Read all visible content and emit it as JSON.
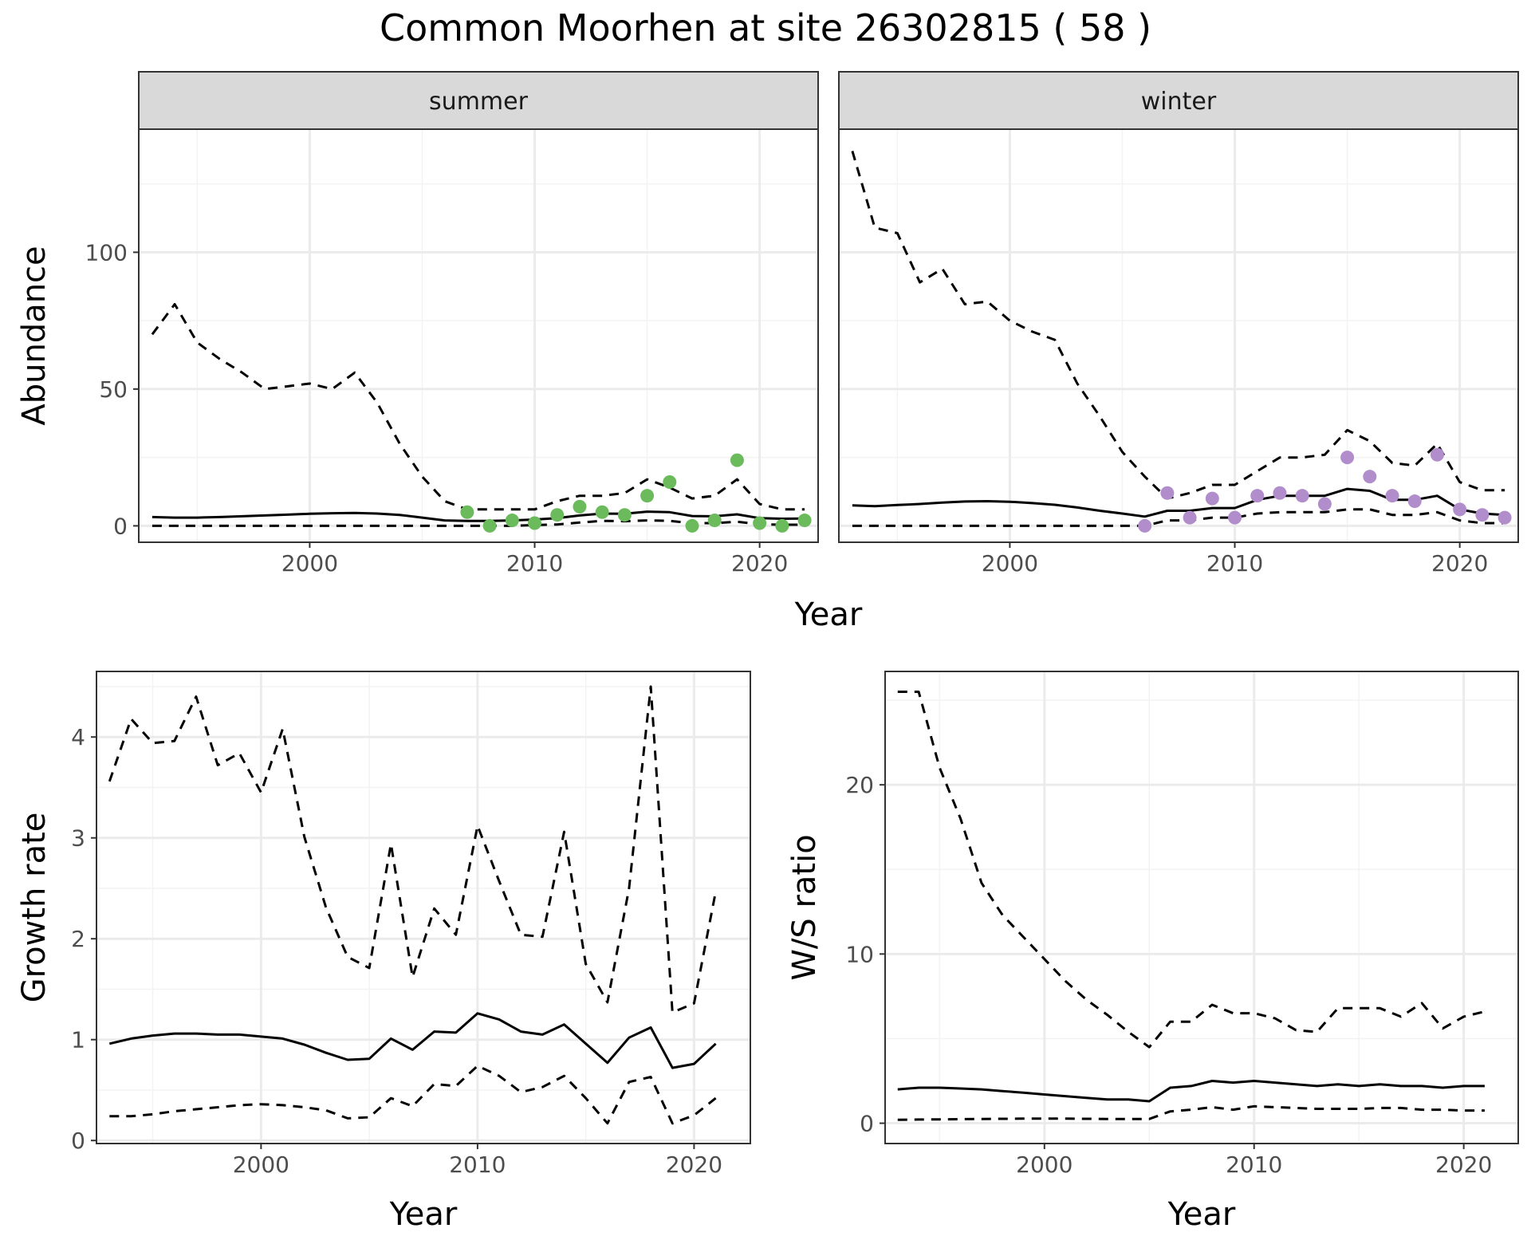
{
  "title": "Common Moorhen at site 26302815 ( 58 )",
  "chart_data": [
    {
      "id": "abundance",
      "type": "line",
      "ylabel": "Abundance",
      "xlabel": "Year",
      "xlim": [
        1992.4,
        2022.6
      ],
      "ylim": [
        -6,
        145
      ],
      "xticks": [
        2000,
        2010,
        2020
      ],
      "yticks": [
        0,
        50,
        100
      ],
      "panels": [
        {
          "strip": "summer",
          "point_color": "#6bbb5c",
          "years": [
            1993,
            1994,
            1995,
            1996,
            1997,
            1998,
            1999,
            2000,
            2001,
            2002,
            2003,
            2004,
            2005,
            2006,
            2007,
            2008,
            2009,
            2010,
            2011,
            2012,
            2013,
            2014,
            2015,
            2016,
            2017,
            2018,
            2019,
            2020,
            2021,
            2022
          ],
          "fit": [
            3.2,
            3.0,
            3.0,
            3.2,
            3.5,
            3.8,
            4.1,
            4.4,
            4.6,
            4.7,
            4.5,
            4.0,
            3.0,
            2.0,
            1.8,
            1.8,
            2.0,
            2.3,
            2.8,
            3.8,
            4.5,
            4.4,
            5.2,
            5.0,
            3.6,
            3.5,
            4.2,
            2.8,
            2.6,
            2.7
          ],
          "upper": [
            70,
            81,
            67,
            61,
            56,
            50,
            51,
            52,
            50,
            56,
            45,
            30,
            18,
            9,
            6,
            6,
            6,
            6,
            9,
            11,
            11,
            12,
            17,
            14,
            10,
            11,
            17,
            8,
            6,
            6
          ],
          "lower": [
            0,
            0,
            0,
            0,
            0,
            0,
            0,
            0,
            0,
            0,
            0,
            0,
            0,
            0,
            0,
            0,
            0,
            0.3,
            0.5,
            1.2,
            1.8,
            1.7,
            2.0,
            1.8,
            1.0,
            1.0,
            1.5,
            0.6,
            0.4,
            0.4
          ],
          "obs_years": [
            2007,
            2008,
            2009,
            2010,
            2011,
            2012,
            2013,
            2014,
            2015,
            2016,
            2017,
            2018,
            2019,
            2020,
            2021,
            2022
          ],
          "obs": [
            5,
            0,
            2,
            1,
            4,
            7,
            5,
            4,
            11,
            16,
            0,
            2,
            24,
            1,
            0,
            2
          ]
        },
        {
          "strip": "winter",
          "point_color": "#b18ecb",
          "years": [
            1993,
            1994,
            1995,
            1996,
            1997,
            1998,
            1999,
            2000,
            2001,
            2002,
            2003,
            2004,
            2005,
            2006,
            2007,
            2008,
            2009,
            2010,
            2011,
            2012,
            2013,
            2014,
            2015,
            2016,
            2017,
            2018,
            2019,
            2020,
            2021,
            2022
          ],
          "fit": [
            7.5,
            7.2,
            7.6,
            8.0,
            8.5,
            8.9,
            9.0,
            8.8,
            8.3,
            7.7,
            6.7,
            5.5,
            4.5,
            3.4,
            5.5,
            5.5,
            6.5,
            6.5,
            9.5,
            11,
            11,
            11,
            13.5,
            12.8,
            9.5,
            9.5,
            11,
            6,
            4.5,
            4
          ],
          "upper": [
            137,
            109,
            107,
            89,
            94,
            81,
            82,
            75,
            71,
            68,
            52,
            40,
            27,
            18,
            10,
            12,
            15,
            15,
            20,
            25,
            25,
            26,
            35,
            31,
            23,
            22,
            30,
            16,
            13,
            13
          ],
          "lower": [
            0,
            0,
            0,
            0,
            0,
            0,
            0,
            0,
            0,
            0,
            0,
            0,
            0,
            0,
            2,
            2,
            3,
            3,
            4.5,
            5,
            5,
            5,
            6,
            6,
            4,
            4,
            5,
            2,
            1,
            1
          ],
          "obs_years": [
            2006,
            2007,
            2008,
            2009,
            2010,
            2011,
            2012,
            2013,
            2014,
            2015,
            2016,
            2017,
            2018,
            2019,
            2020,
            2021,
            2022
          ],
          "obs": [
            0,
            12,
            3,
            10,
            3,
            11,
            12,
            11,
            8,
            25,
            18,
            11,
            9,
            26,
            6,
            4,
            3
          ]
        }
      ]
    },
    {
      "id": "growth",
      "type": "line",
      "ylabel": "Growth rate",
      "xlabel": "Year",
      "xlim": [
        1992.4,
        2022.6
      ],
      "ylim": [
        -0.03,
        4.65
      ],
      "xticks": [
        2000,
        2010,
        2020
      ],
      "yticks": [
        0,
        1,
        2,
        3,
        4
      ],
      "years": [
        1993,
        1994,
        1995,
        1996,
        1997,
        1998,
        1999,
        2000,
        2001,
        2002,
        2003,
        2004,
        2005,
        2006,
        2007,
        2008,
        2009,
        2010,
        2011,
        2012,
        2013,
        2014,
        2015,
        2016,
        2017,
        2018,
        2019,
        2020,
        2021
      ],
      "fit": [
        0.96,
        1.01,
        1.04,
        1.06,
        1.06,
        1.05,
        1.05,
        1.03,
        1.01,
        0.95,
        0.87,
        0.8,
        0.81,
        1.01,
        0.9,
        1.08,
        1.07,
        1.26,
        1.2,
        1.08,
        1.05,
        1.15,
        0.96,
        0.77,
        1.02,
        1.12,
        0.72,
        0.76,
        0.96
      ],
      "upper": [
        3.56,
        4.18,
        3.94,
        3.96,
        4.4,
        3.72,
        3.84,
        3.45,
        4.08,
        3.01,
        2.31,
        1.82,
        1.71,
        2.94,
        1.62,
        2.3,
        2.04,
        3.12,
        2.57,
        2.04,
        2.02,
        3.06,
        1.75,
        1.37,
        2.5,
        4.5,
        1.27,
        1.36,
        2.47
      ],
      "lower": [
        0.24,
        0.24,
        0.26,
        0.29,
        0.31,
        0.33,
        0.35,
        0.36,
        0.35,
        0.33,
        0.3,
        0.22,
        0.23,
        0.42,
        0.34,
        0.56,
        0.54,
        0.74,
        0.64,
        0.48,
        0.53,
        0.64,
        0.42,
        0.17,
        0.58,
        0.63,
        0.17,
        0.25,
        0.42
      ]
    },
    {
      "id": "ws_ratio",
      "type": "line",
      "ylabel": "W/S ratio",
      "xlabel": "Year",
      "xlim": [
        1992.4,
        2022.6
      ],
      "ylim": [
        -1.2,
        26.7
      ],
      "xticks": [
        2000,
        2010,
        2020
      ],
      "yticks": [
        0,
        10,
        20
      ],
      "years": [
        1993,
        1994,
        1995,
        1996,
        1997,
        1998,
        1999,
        2000,
        2001,
        2002,
        2003,
        2004,
        2005,
        2006,
        2007,
        2008,
        2009,
        2010,
        2011,
        2012,
        2013,
        2014,
        2015,
        2016,
        2017,
        2018,
        2019,
        2020,
        2021
      ],
      "fit": [
        2.0,
        2.1,
        2.1,
        2.05,
        2.0,
        1.9,
        1.8,
        1.7,
        1.6,
        1.5,
        1.4,
        1.4,
        1.3,
        2.1,
        2.2,
        2.5,
        2.4,
        2.5,
        2.4,
        2.3,
        2.2,
        2.3,
        2.2,
        2.3,
        2.2,
        2.2,
        2.1,
        2.2,
        2.2
      ],
      "upper": [
        25.5,
        25.5,
        21,
        18,
        14.2,
        12.3,
        11,
        9.7,
        8.4,
        7.3,
        6.4,
        5.4,
        4.5,
        6.0,
        6.0,
        7.0,
        6.5,
        6.5,
        6.2,
        5.5,
        5.4,
        6.8,
        6.8,
        6.8,
        6.3,
        7.1,
        5.6,
        6.3,
        6.6
      ],
      "lower": [
        0.2,
        0.22,
        0.23,
        0.24,
        0.25,
        0.26,
        0.27,
        0.27,
        0.27,
        0.26,
        0.25,
        0.25,
        0.25,
        0.7,
        0.8,
        0.95,
        0.8,
        1.0,
        0.95,
        0.9,
        0.85,
        0.85,
        0.85,
        0.9,
        0.9,
        0.8,
        0.8,
        0.75,
        0.75
      ]
    }
  ]
}
